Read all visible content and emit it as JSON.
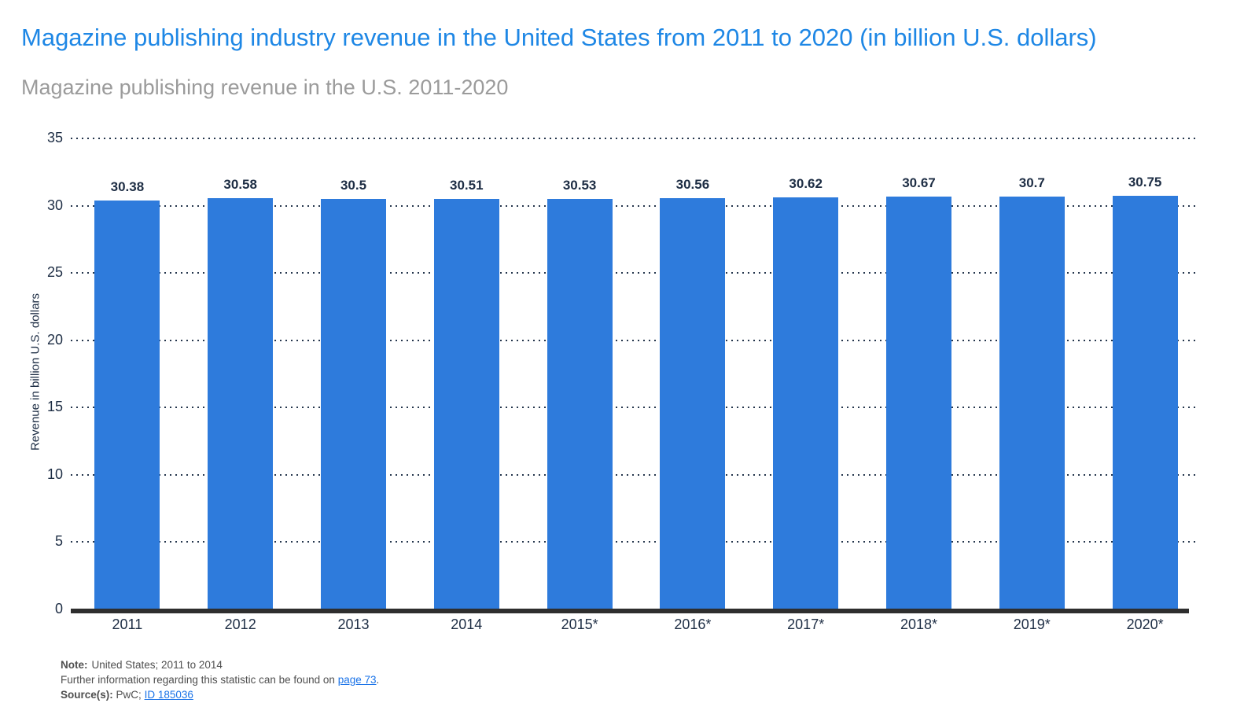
{
  "header": {
    "title": "Magazine publishing industry revenue in the United States from 2011 to 2020 (in billion U.S. dollars)",
    "subtitle": "Magazine publishing revenue in the U.S. 2011-2020"
  },
  "chart_data": {
    "type": "bar",
    "title": "Magazine publishing industry revenue in the United States from 2011 to 2020 (in billion U.S. dollars)",
    "subtitle": "Magazine publishing revenue in the U.S. 2011-2020",
    "categories": [
      "2011",
      "2012",
      "2013",
      "2014",
      "2015*",
      "2016*",
      "2017*",
      "2018*",
      "2019*",
      "2020*"
    ],
    "values": [
      30.38,
      30.58,
      30.5,
      30.51,
      30.53,
      30.56,
      30.62,
      30.67,
      30.7,
      30.75
    ],
    "xlabel": "",
    "ylabel": "Revenue in billion U.S. dollars",
    "ylim": [
      0,
      35
    ],
    "yticks": [
      0,
      5,
      10,
      15,
      20,
      25,
      30,
      35
    ],
    "grid": "horizontal-dotted",
    "legend": "none",
    "value_labels_shown": true
  },
  "footer": {
    "note_label": "Note:",
    "note_text": "United States; 2011 to 2014",
    "info_text": "Further information regarding this statistic can be found on",
    "info_link": "page 73",
    "info_suffix": ".",
    "source_label": "Source(s):",
    "source_text": "PwC;",
    "source_link": "ID 185036"
  },
  "colors": {
    "title": "#1e87e5",
    "subtitle": "#9b9b9b",
    "bar": "#2e7bdc",
    "label": "#1d2d44",
    "grid": "#25364d",
    "axis": "#2e2e2e",
    "link": "#1a73e8",
    "footer_text": "#4f4f4f"
  }
}
